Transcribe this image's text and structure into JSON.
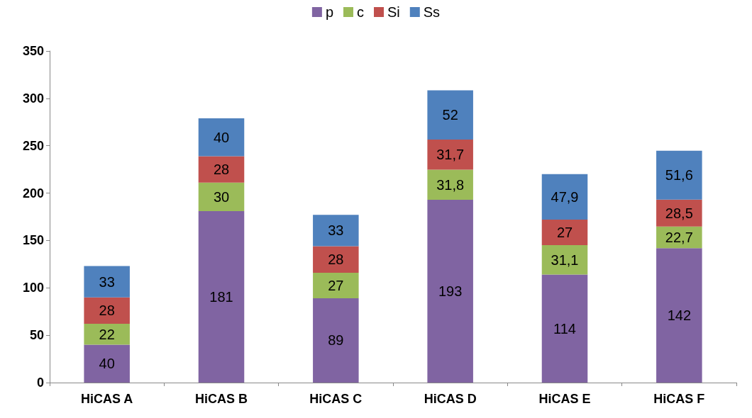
{
  "chart_data": {
    "type": "bar",
    "stacked": true,
    "categories": [
      "HiCAS A",
      "HiCAS B",
      "HiCAS C",
      "HiCAS D",
      "HiCAS E",
      "HiCAS F"
    ],
    "series": [
      {
        "name": "p",
        "color": "#8064a2",
        "values": [
          40,
          181,
          89,
          193,
          114,
          142
        ],
        "value_labels": [
          "40",
          "181",
          "89",
          "193",
          "114",
          "142"
        ]
      },
      {
        "name": "c",
        "color": "#9bbb59",
        "values": [
          22,
          30,
          27,
          31.8,
          31.1,
          22.7
        ],
        "value_labels": [
          "22",
          "30",
          "27",
          "31,8",
          "31,1",
          "22,7"
        ]
      },
      {
        "name": "Si",
        "color": "#c0504d",
        "values": [
          28,
          28,
          28,
          31.7,
          27,
          28.5
        ],
        "value_labels": [
          "28",
          "28",
          "28",
          "31,7",
          "27",
          "28,5"
        ]
      },
      {
        "name": "Ss",
        "color": "#4f81bd",
        "values": [
          33,
          40,
          33,
          52,
          47.9,
          51.6
        ],
        "value_labels": [
          "33",
          "40",
          "33",
          "52",
          "47,9",
          "51,6"
        ]
      }
    ],
    "ylim": [
      0,
      350
    ],
    "yticks": [
      0,
      50,
      100,
      150,
      200,
      250,
      300,
      350
    ],
    "grid": false,
    "legend": "top"
  }
}
